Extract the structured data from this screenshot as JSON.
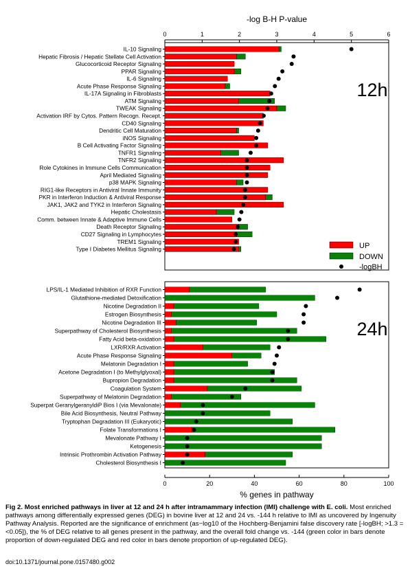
{
  "figure": {
    "top_axis_label": "-log B-H P-value",
    "top_axis_ticks": [
      "0",
      "1",
      "2",
      "3",
      "4",
      "5",
      "6"
    ],
    "bottom_axis_label": "% genes in pathway",
    "bottom_axis_ticks": [
      "0",
      "20",
      "40",
      "60",
      "80",
      "100"
    ],
    "legend": {
      "up": "UP",
      "down": "DOWN",
      "logbh": "-logBH"
    },
    "colors": {
      "up": "#ff0000",
      "down": "#0a820a",
      "marker": "#000000"
    }
  },
  "chart_data": [
    {
      "type": "bar",
      "panel_label": "12h",
      "xlabel_top": "-log B-H P-value",
      "xlabel_bottom": "% genes in pathway",
      "pct_range": [
        0,
        100
      ],
      "logbh_range": [
        0,
        6
      ],
      "categories": [
        "IL-10 Signaling",
        "Hepatic Fibrosis / Hepatic Stellate Cell Activation",
        "Glucocorticoid Receptor Signaling",
        "PPAR Signaling",
        "IL-6 Signaling",
        "Acute Phase Response Signaling",
        "IL-17A Signaling in Fibroblasts",
        "ATM Signaling",
        "TWEAK Signaling",
        "Activation IRF by Cytos. Pattern Recogn. Recept.",
        "CD40 Signaling",
        "Dendritic Cell Maturation",
        "iNOS Signaling",
        "B Cell Activating Factor Signaling",
        "TNFR1 Signaling",
        "TNFR2 Signaling",
        "Role Cytokines in Immune Cells Communication",
        "April Mediated Signaling",
        "p38 MAPK Signaling",
        "RIG1-like Receptors in Antiviral Innate Immunity",
        "PKR in Interferon Induction & Antiviral Response",
        "JAK1, JAK2 and TYK2 in Interferon Signaling",
        "Hepatic Cholestasis",
        "Comm. between Innate & Adaptive Immune Cells",
        "Death Receptor Signaling",
        "CD27 Signaling in Lymphocytes",
        "TREM1 Signaling",
        "Type I Diabetes Mellitus Signaling"
      ],
      "series": [
        {
          "name": "UP",
          "values": [
            51,
            32,
            31,
            31,
            28,
            27,
            47,
            33,
            50,
            44,
            44,
            32,
            40,
            46,
            25,
            53,
            47,
            46,
            32,
            46,
            45,
            53,
            23,
            30,
            33,
            32,
            33,
            33
          ]
        },
        {
          "name": "DOWN",
          "values": [
            1,
            4,
            0,
            3,
            0,
            2,
            0,
            16,
            4,
            0,
            0,
            1,
            0,
            0,
            8,
            0,
            0,
            0,
            3,
            0,
            3,
            0,
            8,
            0,
            4,
            7,
            0,
            1
          ]
        },
        {
          "name": "-logBH",
          "values": [
            5.0,
            3.45,
            3.4,
            3.15,
            3.05,
            2.95,
            2.85,
            2.8,
            2.75,
            2.65,
            2.55,
            2.5,
            2.45,
            2.45,
            2.3,
            2.2,
            2.2,
            2.2,
            2.2,
            2.15,
            2.15,
            2.1,
            2.05,
            2.0,
            1.95,
            1.9,
            1.9,
            1.85
          ]
        }
      ]
    },
    {
      "type": "bar",
      "panel_label": "24h",
      "categories": [
        "LPS/IL-1 Mediated Inhibition of RXR Function",
        "Glutathione-mediated Detoxification",
        "Nicotine Degradation II",
        "Estrogen Biosynthesis",
        "Nicotine Degradation III",
        "Superpathway of Cholesterol Biosynthesis",
        "Fatty Acid beta-oxidation",
        "LXR/RXR Activation",
        "Acute Phase Response Signaling",
        "Melatonin Degradation I",
        "Acetone Degradation I (to Methylglyoxal)",
        "Bupropion Degradation",
        "Coagulation System",
        "Superpathway of Melatonin Degradation",
        "Superpat GeranylgeranyldiP Bios I (via Mevalonate)",
        "Bile Acid Biosynthesis, Neutral Pathway",
        "Tryptophan Degradation III (Eukaryotic)",
        "Folate Transformations I",
        "Mevalonate Pathway I",
        "Ketogenesis",
        "Intrinsic Prothrombin Activation Pathway",
        "Cholesterol Biosynthesis I"
      ],
      "series": [
        {
          "name": "UP",
          "values": [
            11,
            0,
            4,
            3,
            5,
            3,
            4,
            17,
            30,
            4,
            4,
            4,
            19,
            3,
            7,
            0,
            0,
            12,
            0,
            0,
            18,
            0
          ]
        },
        {
          "name": "DOWN",
          "values": [
            34,
            67,
            38,
            47,
            36,
            56,
            68,
            30,
            13,
            33,
            45,
            55,
            42,
            31,
            60,
            47,
            57,
            64,
            70,
            70,
            39,
            54
          ]
        },
        {
          "name": "-logBH",
          "values": [
            87,
            77,
            63,
            62,
            62,
            55,
            55,
            51,
            50,
            49,
            48,
            48,
            36,
            30,
            17,
            17,
            14,
            13,
            10,
            10,
            10,
            8
          ]
        }
      ]
    }
  ],
  "caption": {
    "title": "Fig 2. Most enriched pathways in liver at 12 and 24 h after intramammary infection (IMI) challenge with E. coli.",
    "body": "Most enriched pathways among differentially expressed genes (DEG) in bovine liver at 12 and 24 vs. -144 h relative to IMI as uncovered by Ingenuity Pathway Analysis. Reported are the significance of enrichment (as−log10 of the Hochberg-Benjamini false discovery rate [-logBH; >1.3 = <0.05]), the % of DEG relative to all genes present in the pathway, and the overall fold change vs. -144 (green color in bars denote proportion of down-regulated DEG and red color in bars denote proportion of up-regulated DEG).",
    "doi": "doi:10.1371/journal.pone.0157480.g002"
  }
}
